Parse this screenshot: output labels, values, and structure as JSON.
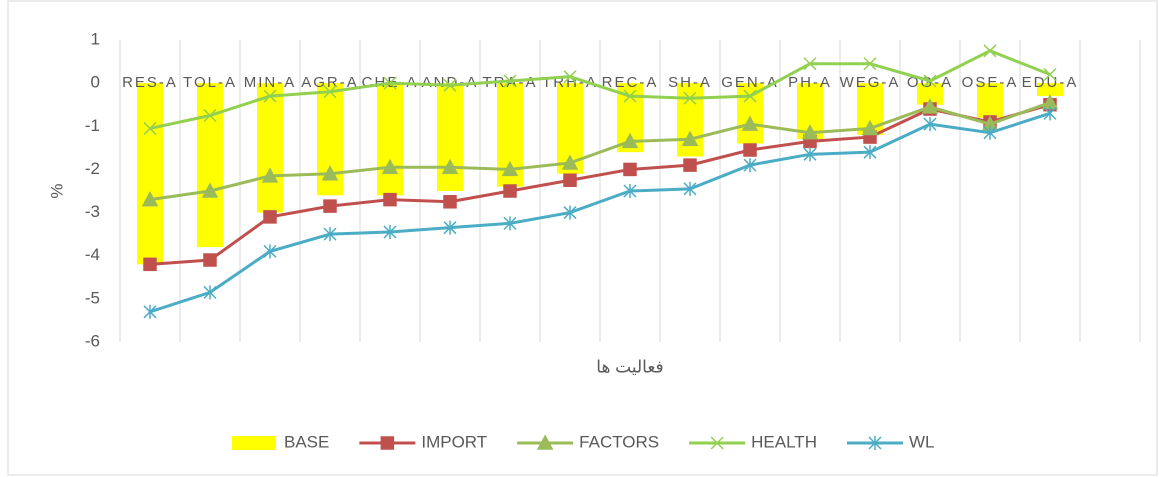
{
  "chart_data": {
    "type": "combo",
    "y_label": "%",
    "x_label": "فعالیت ها",
    "categories": [
      "RES-A",
      "TOL-A",
      "MIN-A",
      "AGR-A",
      "CHE-A",
      "AND-A",
      "TRA-A",
      "TRH-A",
      "REC-A",
      "SH-A",
      "GEN-A",
      "PH-A",
      "WEG-A",
      "OG-A",
      "OSE-A",
      "EDU-A",
      null
    ],
    "ylim": [
      -6,
      1
    ],
    "yticks": [
      1,
      0,
      -1,
      -2,
      -3,
      -4,
      -5,
      -6
    ],
    "series": [
      {
        "name": "BASE",
        "kind": "bar",
        "color": "#ffff00",
        "values": [
          -4.2,
          -3.8,
          -3.0,
          -2.6,
          -2.6,
          -2.5,
          -2.4,
          -2.1,
          -1.6,
          -1.7,
          -1.4,
          -1.3,
          -1.2,
          -0.5,
          -0.8,
          -0.3,
          null
        ]
      },
      {
        "name": "IMPORT",
        "kind": "line",
        "marker": "square",
        "color": "#c0504d",
        "values": [
          -4.2,
          -4.1,
          -3.1,
          -2.85,
          -2.7,
          -2.75,
          -2.5,
          -2.25,
          -2.0,
          -1.9,
          -1.55,
          -1.35,
          -1.25,
          -0.6,
          -0.9,
          -0.5,
          null
        ]
      },
      {
        "name": "FACTORS",
        "kind": "line",
        "marker": "triangle",
        "color": "#9bbb59",
        "values": [
          -2.7,
          -2.5,
          -2.15,
          -2.1,
          -1.95,
          -1.95,
          -2.0,
          -1.85,
          -1.35,
          -1.3,
          -0.95,
          -1.15,
          -1.05,
          -0.55,
          -0.95,
          -0.45,
          null
        ]
      },
      {
        "name": "HEALTH",
        "kind": "line",
        "marker": "x",
        "color": "#92d050",
        "values": [
          -1.05,
          -0.75,
          -0.3,
          -0.2,
          0.0,
          -0.05,
          0.05,
          0.15,
          -0.3,
          -0.35,
          -0.3,
          0.45,
          0.45,
          0.05,
          0.75,
          0.2,
          null
        ]
      },
      {
        "name": "WL",
        "kind": "line",
        "marker": "star",
        "color": "#4bacc6",
        "values": [
          -5.3,
          -4.85,
          -3.9,
          -3.5,
          -3.45,
          -3.35,
          -3.25,
          -3.0,
          -2.5,
          -2.45,
          -1.9,
          -1.65,
          -1.6,
          -0.95,
          -1.15,
          -0.7,
          null
        ]
      }
    ]
  }
}
